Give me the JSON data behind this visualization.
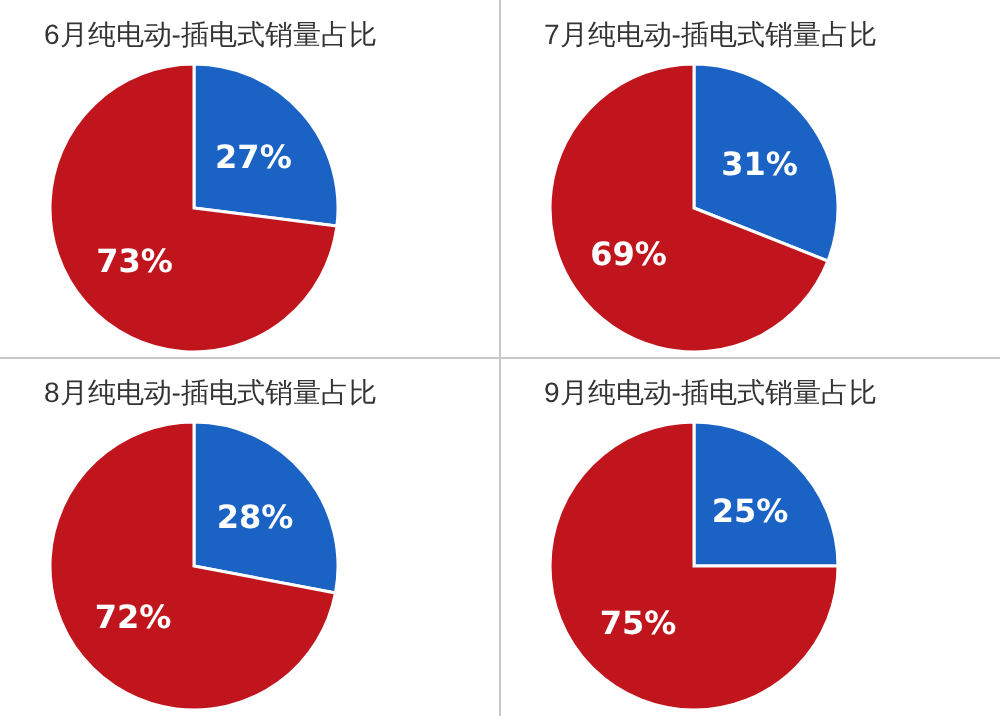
{
  "chart_data": [
    {
      "type": "pie",
      "title": "6月纯电动-插电式销量占比",
      "categories": [
        null,
        null
      ],
      "values": [
        27,
        73
      ],
      "colors": [
        "#1a63c4",
        "#c1151e"
      ],
      "value_labels": [
        "27%",
        "73%"
      ]
    },
    {
      "type": "pie",
      "title": "7月纯电动-插电式销量占比",
      "categories": [
        null,
        null
      ],
      "values": [
        31,
        69
      ],
      "colors": [
        "#1a63c4",
        "#c1151e"
      ],
      "value_labels": [
        "31%",
        "69%"
      ]
    },
    {
      "type": "pie",
      "title": "8月纯电动-插电式销量占比",
      "categories": [
        null,
        null
      ],
      "values": [
        28,
        72
      ],
      "colors": [
        "#1a63c4",
        "#c1151e"
      ],
      "value_labels": [
        "28%",
        "72%"
      ]
    },
    {
      "type": "pie",
      "title": "9月纯电动-插电式销量占比",
      "categories": [
        null,
        null
      ],
      "values": [
        25,
        75
      ],
      "colors": [
        "#1a63c4",
        "#c1151e"
      ],
      "value_labels": [
        "25%",
        "75%"
      ]
    }
  ]
}
